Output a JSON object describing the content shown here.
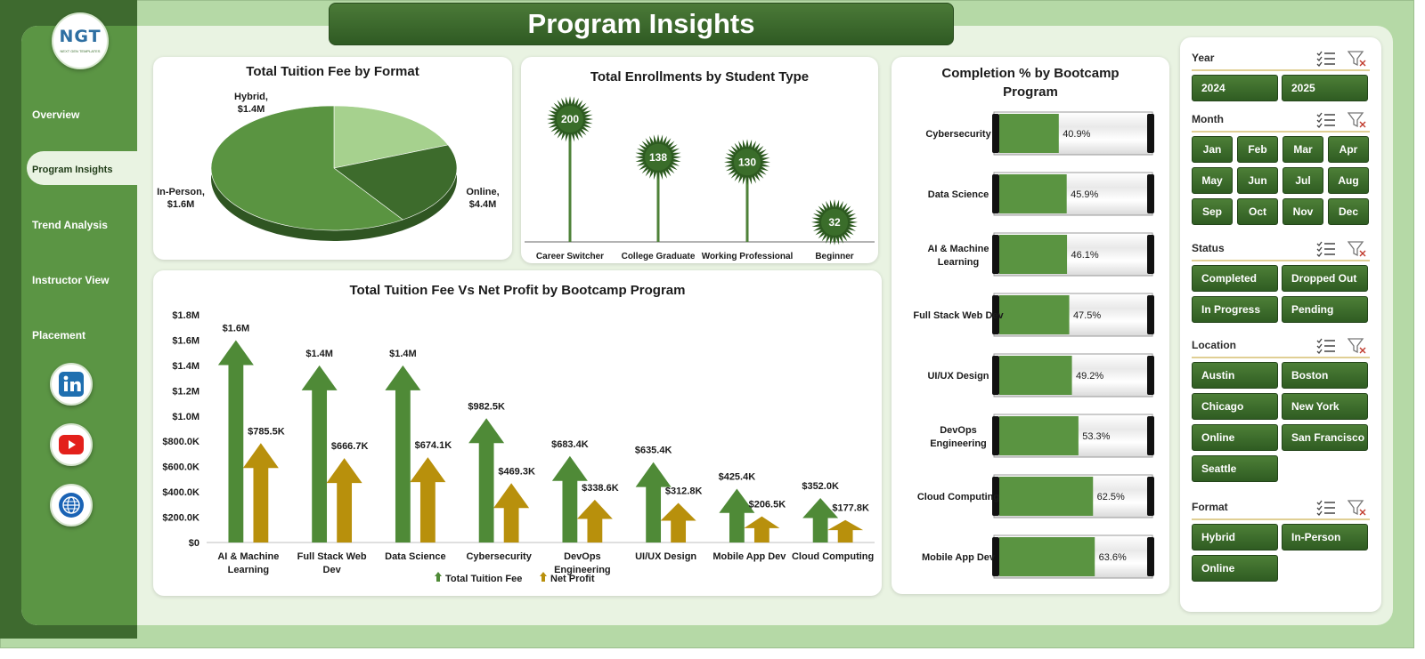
{
  "title": "Program Insights",
  "logo": {
    "text": "NGT",
    "subtext": "NEXT GEN TEMPLATES"
  },
  "nav": {
    "items": [
      "Overview",
      "Program  Insights",
      "Trend Analysis",
      "Instructor View",
      "Placement"
    ],
    "active_index": 1
  },
  "social": [
    "linkedin-icon",
    "youtube-icon",
    "web-icon"
  ],
  "charts": {
    "tuition_by_format": {
      "title": "Total Tuition Fee by Format",
      "labels": {
        "hybrid": "Hybrid,\n$1.4M",
        "in_person": "In-Person,\n$1.6M",
        "online": "Online,\n$4.4M"
      }
    },
    "enrollments": {
      "title": "Total Enrollments  by Student Type"
    },
    "completion": {
      "title": "Completion % by Bootcamp Program"
    },
    "tuition_vs_profit": {
      "title": "Total Tuition Fee Vs  Net Profit by Bootcamp Program",
      "legend": [
        "Total Tuition Fee",
        "Net Profit"
      ]
    }
  },
  "chart_data": [
    {
      "type": "pie",
      "title": "Total Tuition Fee by Format",
      "categories": [
        "Hybrid",
        "In-Person",
        "Online"
      ],
      "values": [
        1.4,
        1.6,
        4.4
      ],
      "value_labels": [
        "$1.4M",
        "$1.6M",
        "$4.4M"
      ],
      "colors": [
        "#a6d18e",
        "#3d6b2c",
        "#5a9441"
      ]
    },
    {
      "type": "bar",
      "title": "Total Enrollments  by Student Type",
      "categories": [
        "Career Switcher",
        "College Graduate",
        "Working Professional",
        "Beginner"
      ],
      "values": [
        200,
        138,
        130,
        32
      ]
    },
    {
      "type": "bar",
      "title": "Completion % by Bootcamp Program",
      "categories": [
        "Cybersecurity",
        "Data Science",
        "AI & Machine Learning",
        "Full Stack Web Dev",
        "UI/UX Design",
        "DevOps Engineering",
        "Cloud Computing",
        "Mobile App Dev"
      ],
      "values": [
        40.9,
        45.9,
        46.1,
        47.5,
        49.2,
        53.3,
        62.5,
        63.6
      ],
      "value_labels": [
        "40.9%",
        "45.9%",
        "46.1%",
        "47.5%",
        "49.2%",
        "53.3%",
        "62.5%",
        "63.6%"
      ],
      "category_lines": [
        [
          "Cybersecurity"
        ],
        [
          "Data Science"
        ],
        [
          "AI & Machine",
          "Learning"
        ],
        [
          "Full Stack Web Dev"
        ],
        [
          "UI/UX Design"
        ],
        [
          "DevOps",
          "Engineering"
        ],
        [
          "Cloud Computing"
        ],
        [
          "Mobile App Dev"
        ]
      ]
    },
    {
      "type": "bar",
      "title": "Total Tuition Fee Vs  Net Profit by Bootcamp Program",
      "categories": [
        "AI & Machine Learning",
        "Full Stack Web Dev",
        "Data Science",
        "Cybersecurity",
        "DevOps Engineering",
        "UI/UX Design",
        "Mobile App Dev",
        "Cloud Computing"
      ],
      "category_lines": [
        [
          "AI & Machine",
          "Learning"
        ],
        [
          "Full Stack Web",
          "Dev"
        ],
        [
          "Data Science"
        ],
        [
          "Cybersecurity"
        ],
        [
          "DevOps",
          "Engineering"
        ],
        [
          "UI/UX Design"
        ],
        [
          "Mobile App Dev"
        ],
        [
          "Cloud Computing"
        ]
      ],
      "series": [
        {
          "name": "Total Tuition Fee",
          "values": [
            1.6,
            1.4,
            1.4,
            0.9825,
            0.6834,
            0.6354,
            0.4254,
            0.352
          ],
          "labels": [
            "$1.6M",
            "$1.4M",
            "$1.4M",
            "$982.5K",
            "$683.4K",
            "$635.4K",
            "$425.4K",
            "$352.0K"
          ],
          "color": "#4f8a37"
        },
        {
          "name": "Net Profit",
          "values": [
            0.7855,
            0.6667,
            0.6741,
            0.4693,
            0.3386,
            0.3128,
            0.2065,
            0.1778
          ],
          "labels": [
            "$785.5K",
            "$666.7K",
            "$674.1K",
            "$469.3K",
            "$338.6K",
            "$312.8K",
            "$206.5K",
            "$177.8K"
          ],
          "color": "#b8900c"
        }
      ],
      "ylim": [
        0,
        1.8
      ],
      "yticks": [
        "$0",
        "$200.0K",
        "$400.0K",
        "$600.0K",
        "$800.0K",
        "$1.0M",
        "$1.2M",
        "$1.4M",
        "$1.6M",
        "$1.8M"
      ]
    }
  ],
  "slicers": [
    {
      "label": "Year",
      "options": [
        "2024",
        "2025"
      ],
      "cols": 2
    },
    {
      "label": "Month",
      "options": [
        "Jan",
        "Feb",
        "Mar",
        "Apr",
        "May",
        "Jun",
        "Jul",
        "Aug",
        "Sep",
        "Oct",
        "Nov",
        "Dec"
      ],
      "cols": 4
    },
    {
      "label": "Status",
      "options": [
        "Completed",
        "Dropped Out",
        "In Progress",
        "Pending"
      ],
      "cols": 2
    },
    {
      "label": "Location",
      "options": [
        "Austin",
        "Boston",
        "Chicago",
        "New York",
        "Online",
        "San Francisco",
        "Seattle"
      ],
      "cols": 2
    },
    {
      "label": "Format",
      "options": [
        "Hybrid",
        "In-Person",
        "Online"
      ],
      "cols": 2
    }
  ],
  "colors": {
    "dark_green": "#3e6a2f",
    "mid_green": "#5b9544",
    "light_green": "#b5d9a6",
    "gold": "#b8900c"
  }
}
